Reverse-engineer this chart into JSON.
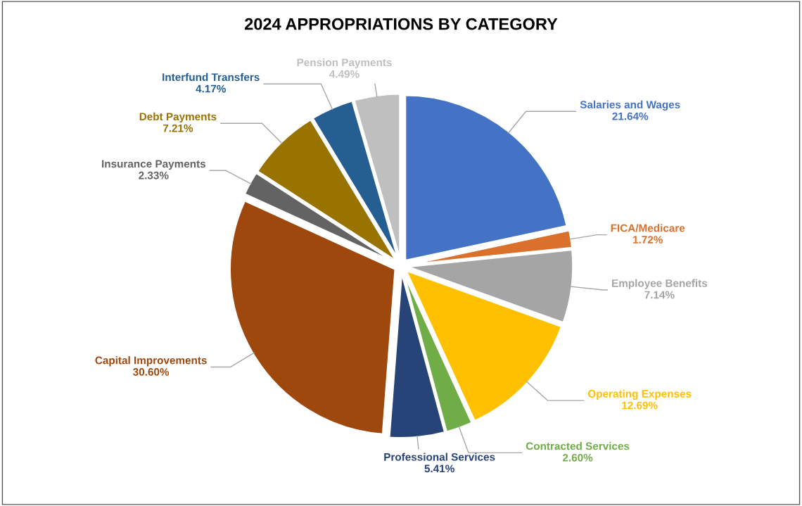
{
  "chart_data": {
    "type": "pie",
    "title": "2024 APPROPRIATIONS BY CATEGORY",
    "categories": [
      "Salaries and Wages",
      "FICA/Medicare",
      "Employee Benefits",
      "Operating Expenses",
      "Contracted Services",
      "Professional Services",
      "Capital Improvements",
      "Insurance Payments",
      "Debt Payments",
      "Interfund Transfers",
      "Pension Payments"
    ],
    "values": [
      21.64,
      1.72,
      7.14,
      12.69,
      2.6,
      5.41,
      30.6,
      2.33,
      7.21,
      4.17,
      4.49
    ],
    "value_labels": [
      "21.64%",
      "1.72%",
      "7.14%",
      "12.69%",
      "2.60%",
      "5.41%",
      "30.60%",
      "2.33%",
      "7.21%",
      "4.17%",
      "4.49%"
    ],
    "colors": [
      "#4472c4",
      "#d9702b",
      "#a5a5a5",
      "#ffc000",
      "#70ad47",
      "#264478",
      "#9e480e",
      "#636363",
      "#997300",
      "#255e91",
      "#bfbfbf"
    ],
    "legend": false
  }
}
